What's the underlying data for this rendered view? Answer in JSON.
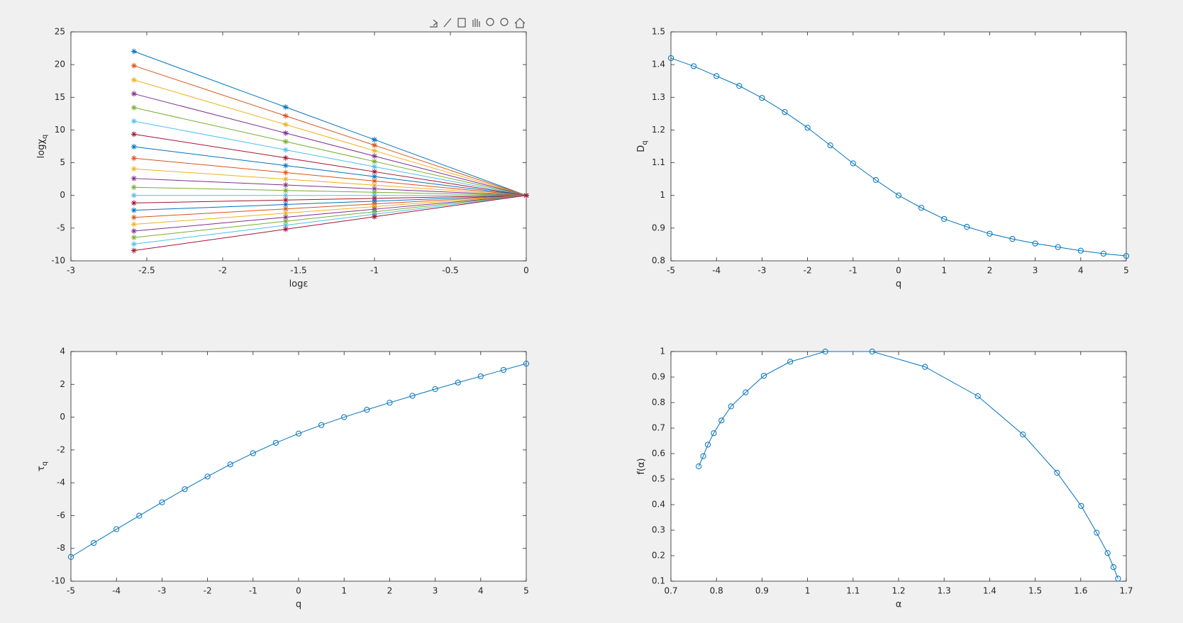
{
  "chart_data": [
    {
      "type": "line",
      "xlabel": "logε",
      "ylabel": "logχ",
      "ylabel_sub": "q",
      "marker": "*",
      "grid": false,
      "x": [
        -2.585,
        -1.585,
        -1,
        0
      ],
      "xlim": [
        -3,
        0
      ],
      "xticks": [
        -3,
        -2.5,
        -2,
        -1.5,
        -1,
        -0.5,
        0
      ],
      "ylim": [
        -10,
        25
      ],
      "yticks": [
        -10,
        -5,
        0,
        5,
        10,
        15,
        20,
        25
      ],
      "series": [
        {
          "color": "#0072BD",
          "values": [
            22.02,
            13.5,
            8.52,
            0
          ]
        },
        {
          "color": "#D95319",
          "values": [
            19.83,
            12.16,
            7.67,
            0
          ]
        },
        {
          "color": "#EDB120",
          "values": [
            17.66,
            10.83,
            6.83,
            0
          ]
        },
        {
          "color": "#7E2F8E",
          "values": [
            15.54,
            9.53,
            6.01,
            0
          ]
        },
        {
          "color": "#77AC30",
          "values": [
            13.42,
            8.23,
            5.19,
            0
          ]
        },
        {
          "color": "#4DBEEE",
          "values": [
            11.35,
            6.96,
            4.39,
            0
          ]
        },
        {
          "color": "#A2142F",
          "values": [
            9.36,
            5.74,
            3.62,
            0
          ]
        },
        {
          "color": "#0072BD",
          "values": [
            7.44,
            4.56,
            2.88,
            0
          ]
        },
        {
          "color": "#D95319",
          "values": [
            5.69,
            3.49,
            2.2,
            0
          ]
        },
        {
          "color": "#EDB120",
          "values": [
            4.06,
            2.49,
            1.57,
            0
          ]
        },
        {
          "color": "#7E2F8E",
          "values": [
            2.59,
            1.59,
            1,
            0
          ]
        },
        {
          "color": "#77AC30",
          "values": [
            1.24,
            0.76,
            0.48,
            0
          ]
        },
        {
          "color": "#4DBEEE",
          "values": [
            0,
            0,
            0,
            0
          ]
        },
        {
          "color": "#A2142F",
          "values": [
            -1.16,
            -0.71,
            -0.45,
            0
          ]
        },
        {
          "color": "#0072BD",
          "values": [
            -2.27,
            -1.39,
            -0.88,
            0
          ]
        },
        {
          "color": "#D95319",
          "values": [
            -3.36,
            -2.06,
            -1.3,
            0
          ]
        },
        {
          "color": "#EDB120",
          "values": [
            -4.42,
            -2.71,
            -1.71,
            0
          ]
        },
        {
          "color": "#7E2F8E",
          "values": [
            -5.45,
            -3.34,
            -2.11,
            0
          ]
        },
        {
          "color": "#77AC30",
          "values": [
            -6.44,
            -3.95,
            -2.49,
            0
          ]
        },
        {
          "color": "#4DBEEE",
          "values": [
            -7.44,
            -4.56,
            -2.88,
            0
          ]
        },
        {
          "color": "#A2142F",
          "values": [
            -8.43,
            -5.17,
            -3.26,
            0
          ]
        }
      ]
    },
    {
      "type": "line",
      "xlabel": "q",
      "ylabel": "D",
      "ylabel_sub": "q",
      "marker": "o",
      "grid": false,
      "x": [
        -5,
        -4.5,
        -4,
        -3.5,
        -3,
        -2.5,
        -2,
        -1.5,
        -1,
        -0.5,
        0,
        0.5,
        1,
        1.5,
        2,
        2.5,
        3,
        3.5,
        4,
        4.5,
        5
      ],
      "xlim": [
        -5,
        5
      ],
      "xticks": [
        -5,
        -4,
        -3,
        -2,
        -1,
        0,
        1,
        2,
        3,
        4,
        5
      ],
      "ylim": [
        0.8,
        1.5
      ],
      "yticks": [
        0.8,
        0.9,
        1,
        1.1,
        1.2,
        1.3,
        1.4,
        1.5
      ],
      "series": [
        {
          "color": "#0072BD",
          "values": [
            1.42,
            1.395,
            1.365,
            1.335,
            1.298,
            1.255,
            1.207,
            1.153,
            1.098,
            1.047,
            1,
            0.962,
            0.928,
            0.904,
            0.883,
            0.867,
            0.853,
            0.842,
            0.831,
            0.822,
            0.815
          ]
        }
      ]
    },
    {
      "type": "line",
      "xlabel": "q",
      "ylabel": "τ",
      "ylabel_sub": "q",
      "marker": "o",
      "grid": false,
      "x": [
        -5,
        -4.5,
        -4,
        -3.5,
        -3,
        -2.5,
        -2,
        -1.5,
        -1,
        -0.5,
        0,
        0.5,
        1,
        1.5,
        2,
        2.5,
        3,
        3.5,
        4,
        4.5,
        5
      ],
      "xlim": [
        -5,
        5
      ],
      "xticks": [
        -5,
        -4,
        -3,
        -2,
        -1,
        0,
        1,
        2,
        3,
        4,
        5
      ],
      "ylim": [
        -10,
        4
      ],
      "yticks": [
        -10,
        -8,
        -6,
        -4,
        -2,
        0,
        2,
        4
      ],
      "series": [
        {
          "color": "#0072BD",
          "values": [
            -8.52,
            -7.67,
            -6.83,
            -6.01,
            -5.19,
            -4.39,
            -3.62,
            -2.88,
            -2.2,
            -1.57,
            -1,
            -0.48,
            0,
            0.45,
            0.88,
            1.3,
            1.71,
            2.11,
            2.49,
            2.88,
            3.26
          ]
        }
      ]
    },
    {
      "type": "line",
      "xlabel": "α",
      "ylabel": "f(α)",
      "marker": "o",
      "grid": false,
      "x": [
        0.761,
        0.771,
        0.781,
        0.794,
        0.811,
        0.832,
        0.864,
        0.904,
        0.962,
        1.039,
        1.142,
        1.258,
        1.374,
        1.473,
        1.548,
        1.601,
        1.635,
        1.659,
        1.672,
        1.682
      ],
      "xlim": [
        0.7,
        1.7
      ],
      "xticks": [
        0.7,
        0.8,
        0.9,
        1,
        1.1,
        1.2,
        1.3,
        1.4,
        1.5,
        1.6,
        1.7
      ],
      "ylim": [
        0.1,
        1
      ],
      "yticks": [
        0.1,
        0.2,
        0.3,
        0.4,
        0.5,
        0.6,
        0.7,
        0.8,
        0.9,
        1
      ],
      "series": [
        {
          "color": "#0072BD",
          "values": [
            0.55,
            0.59,
            0.635,
            0.68,
            0.73,
            0.785,
            0.84,
            0.905,
            0.96,
            1,
            1,
            0.94,
            0.825,
            0.675,
            0.525,
            0.395,
            0.29,
            0.21,
            0.155,
            0.11
          ]
        }
      ]
    }
  ]
}
